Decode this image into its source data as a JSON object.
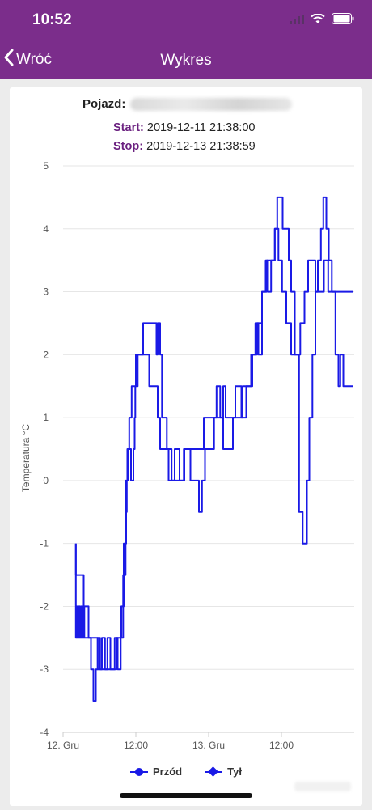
{
  "status_bar": {
    "time": "10:52"
  },
  "nav": {
    "back_label": "Wróć",
    "title": "Wykres"
  },
  "info": {
    "vehicle_label": "Pojazd:",
    "start_label": "Start:",
    "start_value": "2019-12-11 21:38:00",
    "stop_label": "Stop:",
    "stop_value": "2019-12-13 21:38:59"
  },
  "colors": {
    "accent": "#7b2d8b",
    "series": "#1a1ae6"
  },
  "chart_data": {
    "type": "line",
    "ylabel": "Temperatura °C",
    "ylim": [
      -4,
      5
    ],
    "yticks": [
      "5",
      "4",
      "3",
      "2",
      "1",
      "0",
      "-1",
      "-2",
      "-3",
      "-4"
    ],
    "xticks": [
      "12. Gru",
      "12:00",
      "13. Gru",
      "12:00"
    ],
    "xlim_hours": [
      0,
      48
    ],
    "legend": "bottom-center",
    "grid": true,
    "series": [
      {
        "name": "Przód",
        "x": [
          2.1,
          2.1,
          2.2,
          2.3,
          2.5,
          2.6,
          2.7,
          2.8,
          3.0,
          3.2,
          3.3,
          3.5,
          4.2,
          5.4,
          5.7,
          6.2,
          6.4,
          6.9,
          7.5,
          8.0,
          8.2,
          8.5,
          9.0,
          9.5,
          9.7,
          9.9,
          10.3,
          10.4,
          10.5,
          10.8,
          11.2,
          11.6,
          11.8,
          11.9,
          12.3,
          13.2,
          15.4,
          15.6,
          16.0,
          16.3,
          16.7,
          17.1,
          17.5,
          17.9,
          18.4,
          18.8,
          19.2,
          19.5,
          19.9,
          20.4,
          21.0,
          21.6,
          22.0,
          22.4,
          22.9,
          23.4,
          24.2,
          24.9,
          25.3,
          25.9,
          26.4,
          26.8,
          27.3,
          27.9,
          28.4,
          29.4,
          30.2,
          31.0,
          31.7,
          32.2,
          32.8,
          33.4,
          33.8,
          34.3,
          34.9,
          35.3,
          36.2,
          37.2,
          37.6,
          38.2,
          38.9,
          39.5,
          40.2,
          40.6,
          41.1,
          41.6,
          42.0,
          42.5,
          42.9,
          43.4,
          43.8,
          44.3,
          44.9,
          45.4,
          45.7,
          46.2,
          47.0,
          47.8
        ],
        "y": [
          -1,
          -2.5,
          -2,
          -2.5,
          -2,
          -2.5,
          -2,
          -2.5,
          -2,
          -2.5,
          -2,
          -2.5,
          -2.5,
          -2.5,
          -3,
          -3,
          -2.5,
          -3,
          -3,
          -3,
          -3,
          -2.5,
          -3,
          -2.5,
          -2.5,
          -1.5,
          -1,
          -0.5,
          0,
          0.5,
          0,
          0.5,
          1,
          1.5,
          2,
          2.5,
          2,
          2.5,
          2,
          1,
          1,
          0.5,
          0.5,
          0,
          0.5,
          0.5,
          0,
          0,
          0.5,
          0.5,
          0,
          0,
          0,
          -0.5,
          0,
          0.5,
          0.5,
          1,
          1.5,
          1,
          1.5,
          1,
          1,
          1,
          1.5,
          1,
          1.5,
          2,
          2.5,
          2,
          3,
          3.5,
          3,
          3.5,
          4,
          4.5,
          4,
          3.5,
          3,
          2,
          -0.5,
          -1,
          0,
          1,
          2,
          3,
          3.5,
          4,
          4.5,
          4,
          3.5,
          3,
          2,
          1.5,
          2,
          1.5,
          1.5,
          1.5
        ]
      },
      {
        "name": "Tył",
        "x": [
          2.1,
          2.1,
          2.6,
          3.0,
          3.4,
          3.8,
          4.2,
          4.6,
          5.0,
          5.4,
          5.7,
          6.1,
          6.6,
          7.3,
          7.8,
          8.3,
          8.8,
          9.2,
          9.6,
          10.0,
          10.3,
          10.6,
          10.9,
          11.3,
          11.7,
          12.0,
          12.5,
          13.0,
          13.6,
          14.2,
          14.8,
          15.3,
          15.6,
          16.0,
          16.3,
          16.6,
          17.0,
          17.4,
          17.9,
          18.5,
          19.2,
          20.0,
          20.8,
          21.6,
          22.4,
          23.2,
          24.0,
          24.8,
          25.6,
          26.4,
          27.2,
          28.0,
          28.8,
          29.6,
          30.4,
          31.2,
          32.0,
          32.8,
          33.6,
          34.3,
          34.9,
          35.5,
          36.1,
          36.8,
          37.6,
          38.3,
          39.1,
          39.8,
          40.4,
          41.0,
          41.6,
          42.3,
          43.0,
          43.7,
          44.4,
          45.0,
          45.6,
          46.2,
          46.8,
          47.4,
          47.8
        ],
        "y": [
          -1,
          -1.5,
          -1.5,
          -1.5,
          -2,
          -2,
          -2.5,
          -3,
          -3.5,
          -3,
          -2.5,
          -3,
          -3,
          -2.5,
          -3,
          -3,
          -2.5,
          -2.5,
          -2,
          -1,
          0,
          0.5,
          1,
          1.5,
          1.5,
          2,
          2,
          2,
          2,
          1.5,
          1.5,
          1.5,
          1,
          0.5,
          0.5,
          0.5,
          0.5,
          0,
          0,
          0,
          0,
          0.5,
          0.5,
          0.5,
          0.5,
          1,
          1,
          1,
          1,
          0.5,
          0.5,
          1,
          1,
          1.5,
          1.5,
          2,
          2.5,
          3,
          3.5,
          3.5,
          4,
          3.5,
          3,
          2.5,
          2,
          2,
          2.5,
          3,
          3.5,
          3.5,
          3,
          3,
          3.5,
          3,
          3,
          3,
          3,
          3,
          3,
          3,
          3
        ]
      }
    ]
  }
}
